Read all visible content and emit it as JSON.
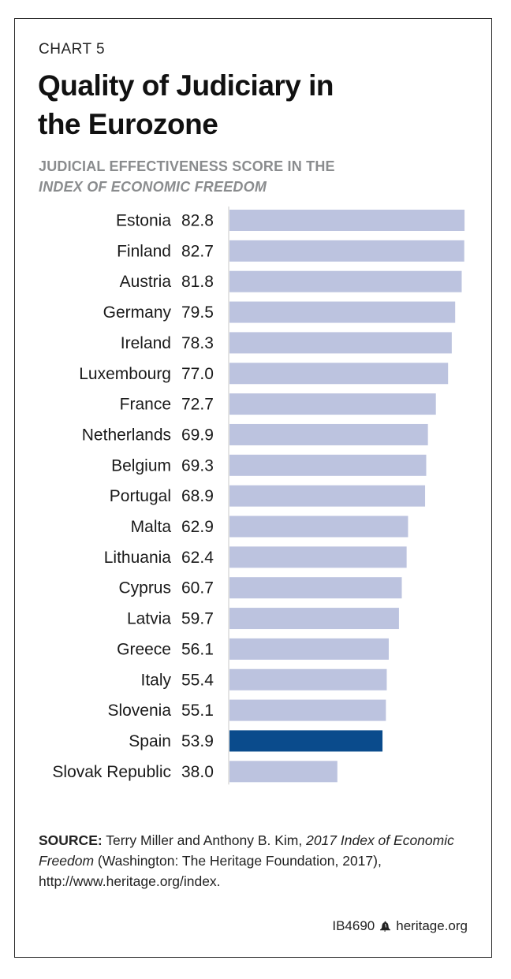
{
  "header": {
    "chart_number": "CHART 5",
    "title_line1": "Quality of Judiciary in",
    "title_line2": "the Eurozone",
    "subtitle_line1": "JUDICIAL EFFECTIVENESS SCORE IN THE",
    "subtitle_line2": "INDEX OF ECONOMIC FREEDOM"
  },
  "source": {
    "label": "SOURCE:",
    "text1": " Terry Miller and Anthony B. Kim, ",
    "italic1": "2017 Index of Economic Freedom",
    "text2": " (Washington: The Heritage Foundation, 2017), http://www.heritage.org/index."
  },
  "footer": {
    "code": "IB4690",
    "site": "heritage.org"
  },
  "colors": {
    "bar_default": "#bcc3df",
    "bar_highlight": "#0a4b8c",
    "axis": "#c8c8c8"
  },
  "chart_data": {
    "type": "bar",
    "orientation": "horizontal",
    "title": "Quality of Judiciary in the Eurozone",
    "subtitle": "JUDICIAL EFFECTIVENESS SCORE IN THE INDEX OF ECONOMIC FREEDOM",
    "categories": [
      "Estonia",
      "Finland",
      "Austria",
      "Germany",
      "Ireland",
      "Luxembourg",
      "France",
      "Netherlands",
      "Belgium",
      "Portugal",
      "Malta",
      "Lithuania",
      "Cyprus",
      "Latvia",
      "Greece",
      "Italy",
      "Slovenia",
      "Spain",
      "Slovak Republic"
    ],
    "values": [
      82.8,
      82.7,
      81.8,
      79.5,
      78.3,
      77.0,
      72.7,
      69.9,
      69.3,
      68.9,
      62.9,
      62.4,
      60.7,
      59.7,
      56.1,
      55.4,
      55.1,
      53.9,
      38.0
    ],
    "value_labels": [
      "82.8",
      "82.7",
      "81.8",
      "79.5",
      "78.3",
      "77.0",
      "72.7",
      "69.9",
      "69.3",
      "68.9",
      "62.9",
      "62.4",
      "60.7",
      "59.7",
      "56.1",
      "55.4",
      "55.1",
      "53.9",
      "38.0"
    ],
    "highlight": "Spain",
    "xlim": [
      0,
      100
    ],
    "grid": false,
    "xlabel": "",
    "ylabel": ""
  }
}
